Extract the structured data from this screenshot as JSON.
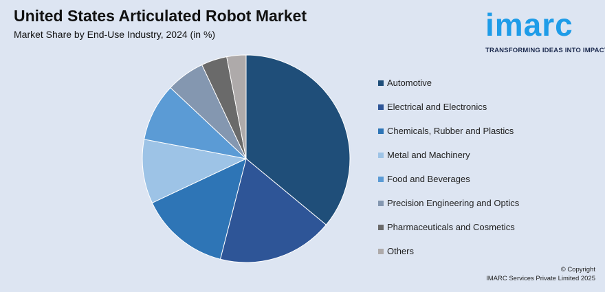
{
  "header": {
    "title": "United States Articulated Robot Market",
    "subtitle": "Market Share by End-Use Industry, 2024 (in %)"
  },
  "logo": {
    "word": "imarc",
    "tagline": "TRANSFORMING IDEAS INTO IMPACT",
    "color": "#1e9ce8"
  },
  "footer": {
    "copyright_line": "© Copyright",
    "company_line": "IMARC Services Private Limited 2025"
  },
  "chart_data": {
    "type": "pie",
    "title": "United States Articulated Robot Market",
    "subtitle": "Market Share by End-Use Industry, 2024 (in %)",
    "legend_position": "right",
    "slices": [
      {
        "label": "Automotive",
        "value": 36,
        "color": "#1f4e79"
      },
      {
        "label": "Electrical and Electronics",
        "value": 18,
        "color": "#2e5597"
      },
      {
        "label": "Chemicals, Rubber and Plastics",
        "value": 14,
        "color": "#2e75b6"
      },
      {
        "label": "Metal and Machinery",
        "value": 10,
        "color": "#9dc3e6"
      },
      {
        "label": "Food and Beverages",
        "value": 9,
        "color": "#5b9bd5"
      },
      {
        "label": "Precision Engineering and Optics",
        "value": 6,
        "color": "#8497b0"
      },
      {
        "label": "Pharmaceuticals and Cosmetics",
        "value": 4,
        "color": "#6a6a6a"
      },
      {
        "label": "Others",
        "value": 3,
        "color": "#aeaaaa"
      }
    ]
  }
}
